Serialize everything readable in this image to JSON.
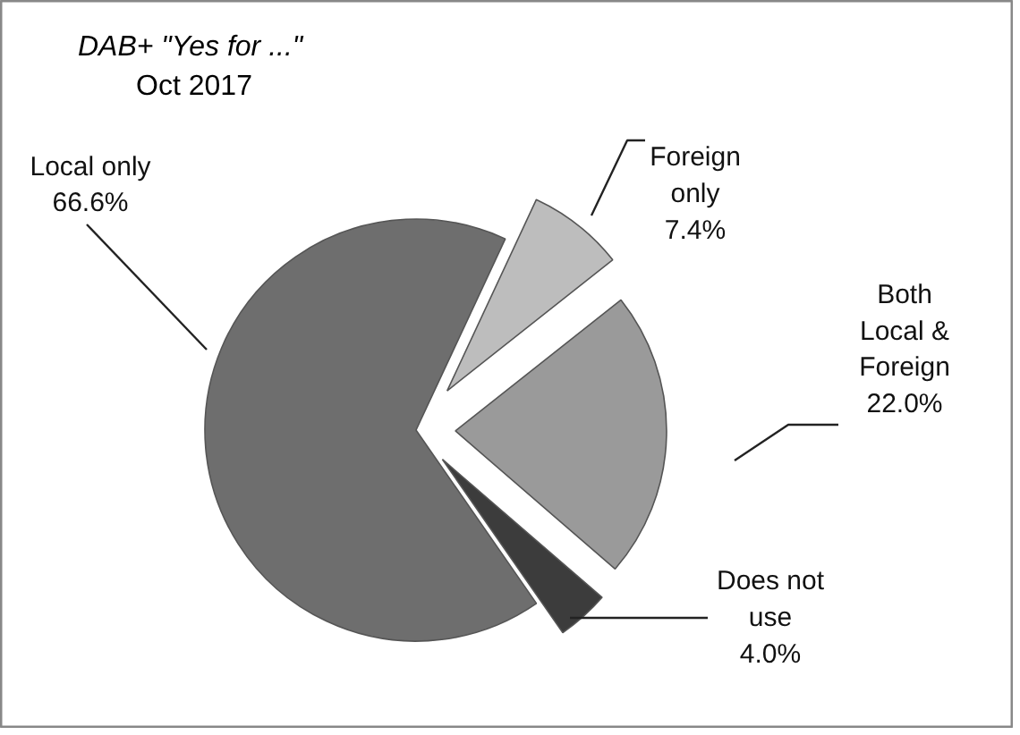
{
  "chart_data": {
    "type": "pie",
    "title": "DAB+  \"Yes for ...\"",
    "subtitle": "Oct 2017",
    "categories": [
      "Foreign only",
      "Both Local & Foreign",
      "Does not use",
      "Local only"
    ],
    "values": [
      7.4,
      22.0,
      4.0,
      66.6
    ],
    "colors": [
      "#bdbdbd",
      "#9a9a9a",
      "#3c3c3c",
      "#6e6e6e"
    ],
    "value_labels": [
      "7.4%",
      "22.0%",
      "4.0%",
      "66.6%"
    ]
  }
}
